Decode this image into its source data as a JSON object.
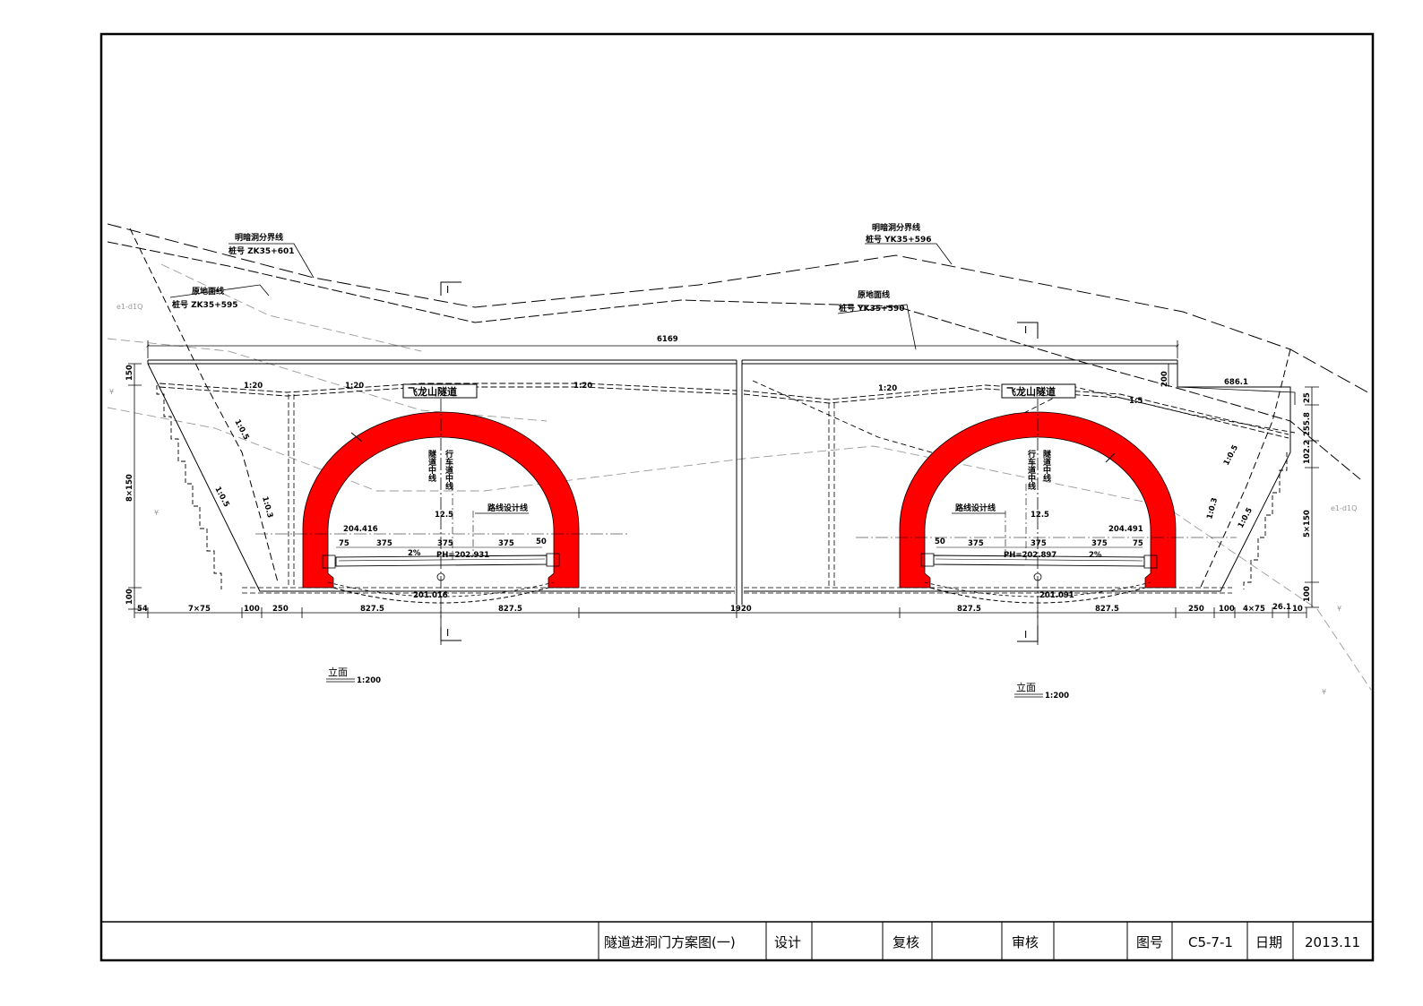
{
  "colors": {
    "lining": "#ff0000",
    "line": "#000000",
    "grey": "#9a9a9a",
    "background": "#ffffff"
  },
  "labels": {
    "left_boundary_title": "明暗洞分界线",
    "left_boundary_station": "桩号 ZK35+601",
    "left_ground_title": "原地面线",
    "left_ground_station": "桩号 ZK35+595",
    "right_boundary_title": "明暗洞分界线",
    "right_boundary_station": "桩号 YK35+596",
    "right_ground_title": "原地面线",
    "right_ground_station": "桩号 YK35+590",
    "section_mark": "I",
    "tunnel_name": "飞龙山隧道",
    "tunnel_center": "隧道中线",
    "lane_center": "行车道中线",
    "route_design_line": "路线设计线",
    "view_title": "立面",
    "view_scale": "1:200",
    "grey_tag_left": "e1-d1Q",
    "grey_tag_right": "e1-d1Q",
    "grey_mark": "¥"
  },
  "dimensions": {
    "total_width": "6169",
    "left_height_top": "150",
    "left_steps": "8×150",
    "left_bottom": "100",
    "right_top_200": "200",
    "right_width_686": "686.1",
    "right_25": "25",
    "right_255": "255.8",
    "right_102": "102.2",
    "right_steps": "5×150",
    "right_bottom": "100",
    "left_bottom_row": [
      "54",
      "7×75",
      "100",
      "250",
      "827.5",
      "827.5"
    ],
    "middle": "1920",
    "right_bottom_row": [
      "827.5",
      "827.5",
      "250",
      "100",
      "4×75",
      "26.1",
      "10"
    ],
    "slope_1_20": "1:20",
    "slope_1_5": "1:5",
    "slope_05": "1:0.5",
    "slope_03": "1:0.3",
    "left_elev_top": "204.416",
    "left_pave": "PH=202.931",
    "left_invert": "201.016",
    "right_elev_top": "204.491",
    "right_pave": "PH=202.897",
    "right_invert": "201.091",
    "lane_75": "75",
    "lane_375": "375",
    "lane_50": "50",
    "crown_offset": "12.5",
    "crossfall": "2%"
  },
  "title_block": {
    "drawing_title": "隧道进洞门方案图(一)",
    "design_label": "设计",
    "design_value": "",
    "review_label": "复核",
    "review_value": "",
    "approve_label": "审核",
    "approve_value": "",
    "drawing_no_label": "图号",
    "drawing_no": "C5-7-1",
    "date_label": "日期",
    "date": "2013.11"
  }
}
